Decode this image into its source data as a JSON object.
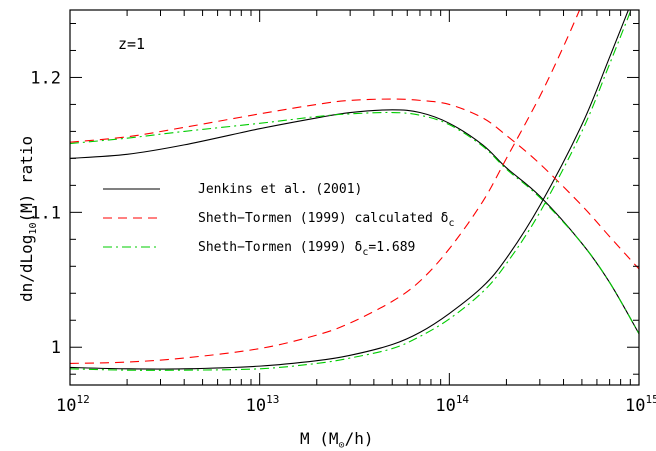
{
  "chart_data": {
    "type": "line",
    "annotation": "z=1",
    "xlabel": {
      "main": "M (M",
      "sub": "⊙",
      "tail": "/h)"
    },
    "ylabel": {
      "pre": "dn/dLog",
      "sub": "10",
      "post": "(M) ratio"
    },
    "xscale": "log",
    "xlim": [
      1000000000000.0,
      1000000000000000.0
    ],
    "ylim": [
      0.972,
      1.25
    ],
    "grid": false,
    "legend_position": "center-left",
    "x_tick_labels": [
      {
        "value": 1000000000000.0,
        "base": "10",
        "exp": "12"
      },
      {
        "value": 10000000000000.0,
        "base": "10",
        "exp": "13"
      },
      {
        "value": 100000000000000.0,
        "base": "10",
        "exp": "14"
      },
      {
        "value": 1000000000000000.0,
        "base": "10",
        "exp": "15"
      }
    ],
    "y_tick_labels": [
      {
        "value": 1.0,
        "label": "1"
      },
      {
        "value": 1.1,
        "label": "1.1"
      },
      {
        "value": 1.2,
        "label": "1.2"
      }
    ],
    "legend": [
      {
        "label": "Jenkins et al. (2001)",
        "sub": "",
        "post": "",
        "color": "#000000",
        "dash": "solid"
      },
      {
        "label": "Sheth−Tormen (1999) calculated δ",
        "sub": "c",
        "post": "",
        "color": "#ff0000",
        "dash": "dashed"
      },
      {
        "label": "Sheth−Tormen (1999) δ",
        "sub": "c",
        "post": "=1.689",
        "color": "#00cc00",
        "dash": "dashdot"
      }
    ],
    "series": [
      {
        "legend_index": 0,
        "color": "#000000",
        "dash": "solid",
        "x": [
          1000000000000.0,
          2000000000000.0,
          4000000000000.0,
          10000000000000.0,
          20000000000000.0,
          30000000000000.0,
          50000000000000.0,
          70000000000000.0,
          100000000000000.0,
          150000000000000.0,
          200000000000000.0,
          300000000000000.0,
          500000000000000.0,
          700000000000000.0,
          1000000000000000.0
        ],
        "y": [
          1.14,
          1.143,
          1.15,
          1.162,
          1.17,
          1.174,
          1.176,
          1.174,
          1.166,
          1.15,
          1.133,
          1.112,
          1.077,
          1.048,
          1.01
        ]
      },
      {
        "legend_index": 0,
        "color": "#000000",
        "dash": "solid",
        "x": [
          1000000000000.0,
          2000000000000.0,
          4000000000000.0,
          10000000000000.0,
          20000000000000.0,
          30000000000000.0,
          50000000000000.0,
          70000000000000.0,
          100000000000000.0,
          150000000000000.0,
          200000000000000.0,
          300000000000000.0,
          500000000000000.0,
          700000000000000.0,
          1000000000000000.0
        ],
        "y": [
          0.985,
          0.984,
          0.984,
          0.986,
          0.99,
          0.994,
          1.002,
          1.011,
          1.025,
          1.045,
          1.066,
          1.105,
          1.165,
          1.215,
          1.27
        ]
      },
      {
        "legend_index": 1,
        "color": "#ff0000",
        "dash": "dashed",
        "x": [
          1000000000000.0,
          2000000000000.0,
          4000000000000.0,
          10000000000000.0,
          20000000000000.0,
          30000000000000.0,
          50000000000000.0,
          70000000000000.0,
          100000000000000.0,
          150000000000000.0,
          200000000000000.0,
          300000000000000.0,
          500000000000000.0,
          700000000000000.0,
          1000000000000000.0
        ],
        "y": [
          1.152,
          1.156,
          1.163,
          1.173,
          1.18,
          1.183,
          1.184,
          1.183,
          1.18,
          1.17,
          1.157,
          1.136,
          1.105,
          1.082,
          1.058
        ]
      },
      {
        "legend_index": 1,
        "color": "#ff0000",
        "dash": "dashed",
        "x": [
          1000000000000.0,
          2000000000000.0,
          4000000000000.0,
          10000000000000.0,
          20000000000000.0,
          30000000000000.0,
          50000000000000.0,
          70000000000000.0,
          100000000000000.0,
          150000000000000.0,
          200000000000000.0,
          300000000000000.0,
          400000000000000.0,
          500000000000000.0,
          600000000000000.0
        ],
        "y": [
          0.988,
          0.989,
          0.992,
          0.999,
          1.009,
          1.018,
          1.034,
          1.049,
          1.073,
          1.108,
          1.14,
          1.186,
          1.223,
          1.254,
          1.28
        ]
      },
      {
        "legend_index": 2,
        "color": "#00cc00",
        "dash": "dashdot",
        "x": [
          1000000000000.0,
          2000000000000.0,
          4000000000000.0,
          10000000000000.0,
          20000000000000.0,
          30000000000000.0,
          50000000000000.0,
          70000000000000.0,
          100000000000000.0,
          150000000000000.0,
          200000000000000.0,
          300000000000000.0,
          500000000000000.0,
          700000000000000.0,
          1000000000000000.0
        ],
        "y": [
          1.151,
          1.155,
          1.16,
          1.166,
          1.171,
          1.173,
          1.174,
          1.172,
          1.165,
          1.149,
          1.132,
          1.111,
          1.077,
          1.048,
          1.01
        ]
      },
      {
        "legend_index": 2,
        "color": "#00cc00",
        "dash": "dashdot",
        "x": [
          1000000000000.0,
          2000000000000.0,
          4000000000000.0,
          10000000000000.0,
          20000000000000.0,
          30000000000000.0,
          50000000000000.0,
          70000000000000.0,
          100000000000000.0,
          150000000000000.0,
          200000000000000.0,
          300000000000000.0,
          500000000000000.0,
          700000000000000.0,
          1000000000000000.0
        ],
        "y": [
          0.984,
          0.983,
          0.983,
          0.984,
          0.988,
          0.992,
          0.999,
          1.008,
          1.021,
          1.041,
          1.062,
          1.1,
          1.16,
          1.21,
          1.265
        ]
      }
    ]
  }
}
